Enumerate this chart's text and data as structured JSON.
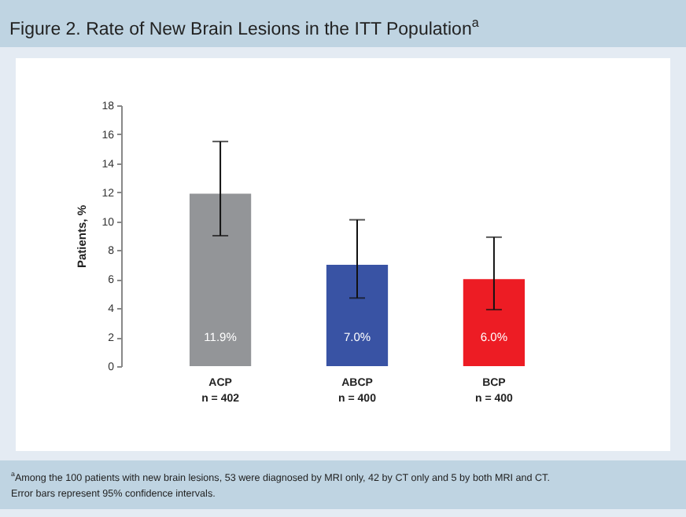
{
  "chart_data": {
    "type": "bar",
    "title": "Figure 2. Rate of New Brain Lesions in the ITT Population$^{a}$",
    "categories": [
      "ACP\nn = 402",
      "ABCP\nn = 400",
      "BCP\nn = 400"
    ],
    "values": [
      11.9,
      7.0,
      6.0
    ],
    "colors": [
      "#939598",
      "#3953a4",
      "#ed1c24"
    ],
    "errors": [
      [
        9.0,
        15.5
      ],
      [
        4.7,
        10.1
      ],
      [
        3.9,
        8.9
      ]
    ],
    "value_labels": [
      "11.9%",
      "7.0%",
      "6.0%"
    ],
    "ylabel": "Patients, %",
    "ylim": [
      0,
      18
    ],
    "yticks": [
      0,
      2,
      4,
      6,
      8,
      10,
      12,
      14,
      16,
      18
    ],
    "annotations": [
      "$^{a}$Among the 100 patients with new brain lesions, 53 were diagnosed by MRI only, 42 by CT only and 5 by both MRI and CT.",
      "Error bars represent 95% confidence intervals."
    ]
  }
}
